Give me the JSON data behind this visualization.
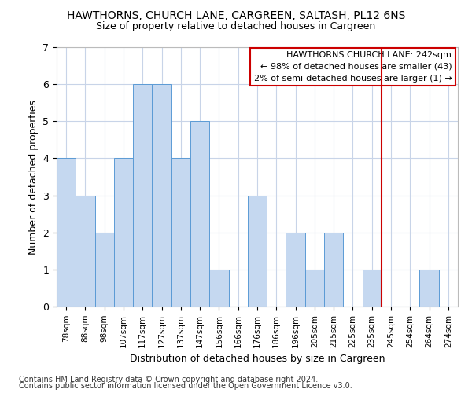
{
  "title": "HAWTHORNS, CHURCH LANE, CARGREEN, SALTASH, PL12 6NS",
  "subtitle": "Size of property relative to detached houses in Cargreen",
  "xlabel": "Distribution of detached houses by size in Cargreen",
  "ylabel": "Number of detached properties",
  "categories": [
    "78sqm",
    "88sqm",
    "98sqm",
    "107sqm",
    "117sqm",
    "127sqm",
    "137sqm",
    "147sqm",
    "156sqm",
    "166sqm",
    "176sqm",
    "186sqm",
    "196sqm",
    "205sqm",
    "215sqm",
    "225sqm",
    "235sqm",
    "245sqm",
    "254sqm",
    "264sqm",
    "274sqm"
  ],
  "values": [
    4,
    3,
    2,
    4,
    6,
    6,
    4,
    5,
    1,
    0,
    3,
    0,
    2,
    1,
    2,
    0,
    1,
    0,
    0,
    1,
    0
  ],
  "bar_color": "#c5d8f0",
  "bar_edge_color": "#5b9bd5",
  "property_line_color": "#cc0000",
  "property_line_index": 17,
  "legend_title": "HAWTHORNS CHURCH LANE: 242sqm",
  "legend_line1": "← 98% of detached houses are smaller (43)",
  "legend_line2": "2% of semi-detached houses are larger (1) →",
  "ylim": [
    0,
    7
  ],
  "yticks": [
    0,
    1,
    2,
    3,
    4,
    5,
    6,
    7
  ],
  "footer_line1": "Contains HM Land Registry data © Crown copyright and database right 2024.",
  "footer_line2": "Contains public sector information licensed under the Open Government Licence v3.0.",
  "background_color": "#ffffff",
  "grid_color": "#c8d4e8"
}
